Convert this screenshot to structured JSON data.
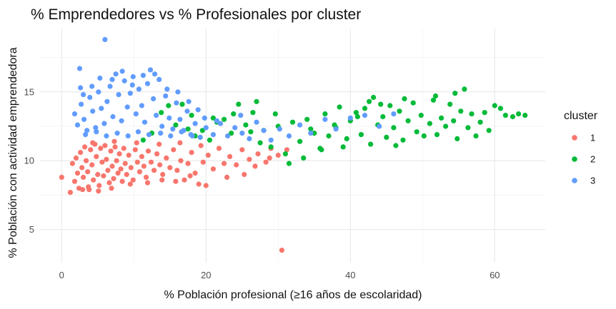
{
  "chart_data": {
    "type": "scatter",
    "title": "% Emprendedores vs % Profesionales por cluster",
    "xlabel": "% Población profesional (≥16 años de escolaridad)",
    "ylabel": "% Población con actividad emprendedora",
    "xlim": [
      -3,
      67
    ],
    "ylim": [
      2.6,
      19.6
    ],
    "x_ticks": [
      0,
      20,
      40,
      60
    ],
    "y_ticks": [
      5,
      10,
      15
    ],
    "grid": true,
    "legend_position": "right",
    "legend_title": "cluster",
    "series": [
      {
        "name": "1",
        "color": "#F8766D",
        "points": [
          [
            0.0,
            8.8
          ],
          [
            1.2,
            7.7
          ],
          [
            1.5,
            9.8
          ],
          [
            1.8,
            8.5
          ],
          [
            2.0,
            10.2
          ],
          [
            2.2,
            9.1
          ],
          [
            2.4,
            8.0
          ],
          [
            2.6,
            10.6
          ],
          [
            2.8,
            9.5
          ],
          [
            3.0,
            8.8
          ],
          [
            3.2,
            11.0
          ],
          [
            3.4,
            10.0
          ],
          [
            3.6,
            9.2
          ],
          [
            3.8,
            7.9
          ],
          [
            4.0,
            10.8
          ],
          [
            4.2,
            9.7
          ],
          [
            4.4,
            8.6
          ],
          [
            4.6,
            11.2
          ],
          [
            4.8,
            10.3
          ],
          [
            5.0,
            9.0
          ],
          [
            5.2,
            8.2
          ],
          [
            5.4,
            10.9
          ],
          [
            5.6,
            9.9
          ],
          [
            5.8,
            8.9
          ],
          [
            6.0,
            11.1
          ],
          [
            6.2,
            10.1
          ],
          [
            6.4,
            9.3
          ],
          [
            6.6,
            8.4
          ],
          [
            6.8,
            10.7
          ],
          [
            7.0,
            9.6
          ],
          [
            7.2,
            8.7
          ],
          [
            7.4,
            11.0
          ],
          [
            7.6,
            10.0
          ],
          [
            7.8,
            9.1
          ],
          [
            8.0,
            10.5
          ],
          [
            8.2,
            9.4
          ],
          [
            8.4,
            8.5
          ],
          [
            8.6,
            10.9
          ],
          [
            8.8,
            9.8
          ],
          [
            9.0,
            9.0
          ],
          [
            9.3,
            10.4
          ],
          [
            9.6,
            9.5
          ],
          [
            9.9,
            8.6
          ],
          [
            10.2,
            10.8
          ],
          [
            10.5,
            9.9
          ],
          [
            10.8,
            9.2
          ],
          [
            11.1,
            10.3
          ],
          [
            11.4,
            9.6
          ],
          [
            11.7,
            8.8
          ],
          [
            12.0,
            10.7
          ],
          [
            12.4,
            9.9
          ],
          [
            12.8,
            9.3
          ],
          [
            13.2,
            10.5
          ],
          [
            13.6,
            9.7
          ],
          [
            14.0,
            9.0
          ],
          [
            14.5,
            10.2
          ],
          [
            15.0,
            9.5
          ],
          [
            15.5,
            10.8
          ],
          [
            16.0,
            9.3
          ],
          [
            16.5,
            10.0
          ],
          [
            17.0,
            8.6
          ],
          [
            17.5,
            9.8
          ],
          [
            18.0,
            10.6
          ],
          [
            18.5,
            9.1
          ],
          [
            19.0,
            8.3
          ],
          [
            19.6,
            9.9
          ],
          [
            20.3,
            10.4
          ],
          [
            21.0,
            9.4
          ],
          [
            21.8,
            10.9
          ],
          [
            22.5,
            9.8
          ],
          [
            23.3,
            10.3
          ],
          [
            24.2,
            9.7
          ],
          [
            25.0,
            10.8
          ],
          [
            26.0,
            10.1
          ],
          [
            27.2,
            10.5
          ],
          [
            28.3,
            9.9
          ],
          [
            29.0,
            10.9
          ],
          [
            30.0,
            10.4
          ],
          [
            30.5,
            3.5
          ],
          [
            31.2,
            10.8
          ],
          [
            5.1,
            7.8
          ],
          [
            3.7,
            8.1
          ],
          [
            6.9,
            8.0
          ],
          [
            2.9,
            7.9
          ],
          [
            9.5,
            8.3
          ],
          [
            11.9,
            8.4
          ],
          [
            13.9,
            8.6
          ],
          [
            15.8,
            8.5
          ],
          [
            17.8,
            8.9
          ],
          [
            20.0,
            8.2
          ],
          [
            22.9,
            8.8
          ],
          [
            25.3,
            9.0
          ],
          [
            26.8,
            9.6
          ],
          [
            28.8,
            10.2
          ],
          [
            4.3,
            11.3
          ],
          [
            7.3,
            11.4
          ],
          [
            10.4,
            11.3
          ],
          [
            13.5,
            11.2
          ],
          [
            16.4,
            11.3
          ],
          [
            19.3,
            11.1
          ]
        ]
      },
      {
        "name": "2",
        "color": "#00BA38",
        "points": [
          [
            11.3,
            11.5
          ],
          [
            12.5,
            12.0
          ],
          [
            13.8,
            13.5
          ],
          [
            14.8,
            14.0
          ],
          [
            15.8,
            12.6
          ],
          [
            16.7,
            14.1
          ],
          [
            17.5,
            12.3
          ],
          [
            18.5,
            11.8
          ],
          [
            19.5,
            12.2
          ],
          [
            20.5,
            11.5
          ],
          [
            21.5,
            12.8
          ],
          [
            22.5,
            13.0
          ],
          [
            23.5,
            12.0
          ],
          [
            24.5,
            14.1
          ],
          [
            25.5,
            12.6
          ],
          [
            26.5,
            13.5
          ],
          [
            27.5,
            11.3
          ],
          [
            28.0,
            12.2
          ],
          [
            29.0,
            11.0
          ],
          [
            30.0,
            12.5
          ],
          [
            31.0,
            10.5
          ],
          [
            31.5,
            9.8
          ],
          [
            32.0,
            12.8
          ],
          [
            33.0,
            11.4
          ],
          [
            34.0,
            13.0
          ],
          [
            35.0,
            12.0
          ],
          [
            35.8,
            10.9
          ],
          [
            36.5,
            13.4
          ],
          [
            37.0,
            11.8
          ],
          [
            38.0,
            12.4
          ],
          [
            38.5,
            13.9
          ],
          [
            39.0,
            11.0
          ],
          [
            40.0,
            12.9
          ],
          [
            40.8,
            13.5
          ],
          [
            41.5,
            11.9
          ],
          [
            42.0,
            13.8
          ],
          [
            42.6,
            14.3
          ],
          [
            43.2,
            14.6
          ],
          [
            43.8,
            12.6
          ],
          [
            44.5,
            13.2
          ],
          [
            45.0,
            11.7
          ],
          [
            45.5,
            14.0
          ],
          [
            46.0,
            12.4
          ],
          [
            46.8,
            13.6
          ],
          [
            47.3,
            11.5
          ],
          [
            48.0,
            12.9
          ],
          [
            48.7,
            14.2
          ],
          [
            49.2,
            12.1
          ],
          [
            49.8,
            13.3
          ],
          [
            50.2,
            11.8
          ],
          [
            51.0,
            12.7
          ],
          [
            51.5,
            14.4
          ],
          [
            52.0,
            11.9
          ],
          [
            52.6,
            13.1
          ],
          [
            53.2,
            12.5
          ],
          [
            53.8,
            14.1
          ],
          [
            54.3,
            12.9
          ],
          [
            54.8,
            11.6
          ],
          [
            55.3,
            13.6
          ],
          [
            55.8,
            15.2
          ],
          [
            56.3,
            12.4
          ],
          [
            56.8,
            13.4
          ],
          [
            57.4,
            11.8
          ],
          [
            58.0,
            12.8
          ],
          [
            58.6,
            13.5
          ],
          [
            59.2,
            12.2
          ],
          [
            60.0,
            14.0
          ],
          [
            60.8,
            13.8
          ],
          [
            61.5,
            13.3
          ],
          [
            62.5,
            13.2
          ],
          [
            63.3,
            13.4
          ],
          [
            64.2,
            13.3
          ],
          [
            47.5,
            14.5
          ],
          [
            51.8,
            14.7
          ],
          [
            54.5,
            14.9
          ],
          [
            44.2,
            14.1
          ],
          [
            41.0,
            13.2
          ],
          [
            37.8,
            12.6
          ],
          [
            34.5,
            12.3
          ],
          [
            29.6,
            13.4
          ],
          [
            26.2,
            12.1
          ],
          [
            23.8,
            13.4
          ],
          [
            21.0,
            13.1
          ],
          [
            18.0,
            13.3
          ],
          [
            27.0,
            14.3
          ],
          [
            33.5,
            10.2
          ],
          [
            36.0,
            10.8
          ],
          [
            39.5,
            11.6
          ],
          [
            42.8,
            11.2
          ],
          [
            46.3,
            11.1
          ]
        ]
      },
      {
        "name": "3",
        "color": "#619CFF",
        "points": [
          [
            2.5,
            16.7
          ],
          [
            6.0,
            18.8
          ],
          [
            1.8,
            13.4
          ],
          [
            2.2,
            12.6
          ],
          [
            2.7,
            14.1
          ],
          [
            3.1,
            13.0
          ],
          [
            3.5,
            12.2
          ],
          [
            3.9,
            14.6
          ],
          [
            4.3,
            13.6
          ],
          [
            4.7,
            12.4
          ],
          [
            5.1,
            15.0
          ],
          [
            5.5,
            13.8
          ],
          [
            5.9,
            12.7
          ],
          [
            6.3,
            14.3
          ],
          [
            6.7,
            15.4
          ],
          [
            7.1,
            13.2
          ],
          [
            7.5,
            16.3
          ],
          [
            7.9,
            14.8
          ],
          [
            8.3,
            12.9
          ],
          [
            8.7,
            15.8
          ],
          [
            9.1,
            13.9
          ],
          [
            9.5,
            14.9
          ],
          [
            9.9,
            16.1
          ],
          [
            10.3,
            13.4
          ],
          [
            10.7,
            15.2
          ],
          [
            11.1,
            14.0
          ],
          [
            11.5,
            12.8
          ],
          [
            11.9,
            15.6
          ],
          [
            12.3,
            16.6
          ],
          [
            12.7,
            14.5
          ],
          [
            13.1,
            13.3
          ],
          [
            13.5,
            15.9
          ],
          [
            13.9,
            12.5
          ],
          [
            14.4,
            14.7
          ],
          [
            14.9,
            13.1
          ],
          [
            15.4,
            12.3
          ],
          [
            15.9,
            14.2
          ],
          [
            16.4,
            13.0
          ],
          [
            16.9,
            12.2
          ],
          [
            17.4,
            13.6
          ],
          [
            17.9,
            11.9
          ],
          [
            18.5,
            12.7
          ],
          [
            19.2,
            11.7
          ],
          [
            20.0,
            12.4
          ],
          [
            21.0,
            11.9
          ],
          [
            22.0,
            12.7
          ],
          [
            23.0,
            11.8
          ],
          [
            24.0,
            12.4
          ],
          [
            25.0,
            12.0
          ],
          [
            26.0,
            11.6
          ],
          [
            27.0,
            12.8
          ],
          [
            28.0,
            12.2
          ],
          [
            29.0,
            11.5
          ],
          [
            30.2,
            12.3
          ],
          [
            31.5,
            11.8
          ],
          [
            33.0,
            12.6
          ],
          [
            34.5,
            12.0
          ],
          [
            36.5,
            13.0
          ],
          [
            38.0,
            12.3
          ],
          [
            40.0,
            13.1
          ],
          [
            42.0,
            13.3
          ],
          [
            44.0,
            12.5
          ],
          [
            46.0,
            13.4
          ],
          [
            3.3,
            11.9
          ],
          [
            4.8,
            12.1
          ],
          [
            6.2,
            11.8
          ],
          [
            7.7,
            12.0
          ],
          [
            9.2,
            11.8
          ],
          [
            10.6,
            12.1
          ],
          [
            12.1,
            11.9
          ],
          [
            13.7,
            12.0
          ],
          [
            15.1,
            11.8
          ],
          [
            16.6,
            12.1
          ],
          [
            18.1,
            11.8
          ],
          [
            5.3,
            16.0
          ],
          [
            8.4,
            16.5
          ],
          [
            11.3,
            16.2
          ],
          [
            12.9,
            16.3
          ],
          [
            7.0,
            15.9
          ],
          [
            9.8,
            15.5
          ],
          [
            4.2,
            15.4
          ],
          [
            2.6,
            15.3
          ],
          [
            3.0,
            14.8
          ],
          [
            14.6,
            15.2
          ],
          [
            16.1,
            15.0
          ],
          [
            17.6,
            14.3
          ],
          [
            18.9,
            13.7
          ],
          [
            19.8,
            13.1
          ],
          [
            21.5,
            12.9
          ],
          [
            24.8,
            13.3
          ]
        ]
      }
    ]
  }
}
